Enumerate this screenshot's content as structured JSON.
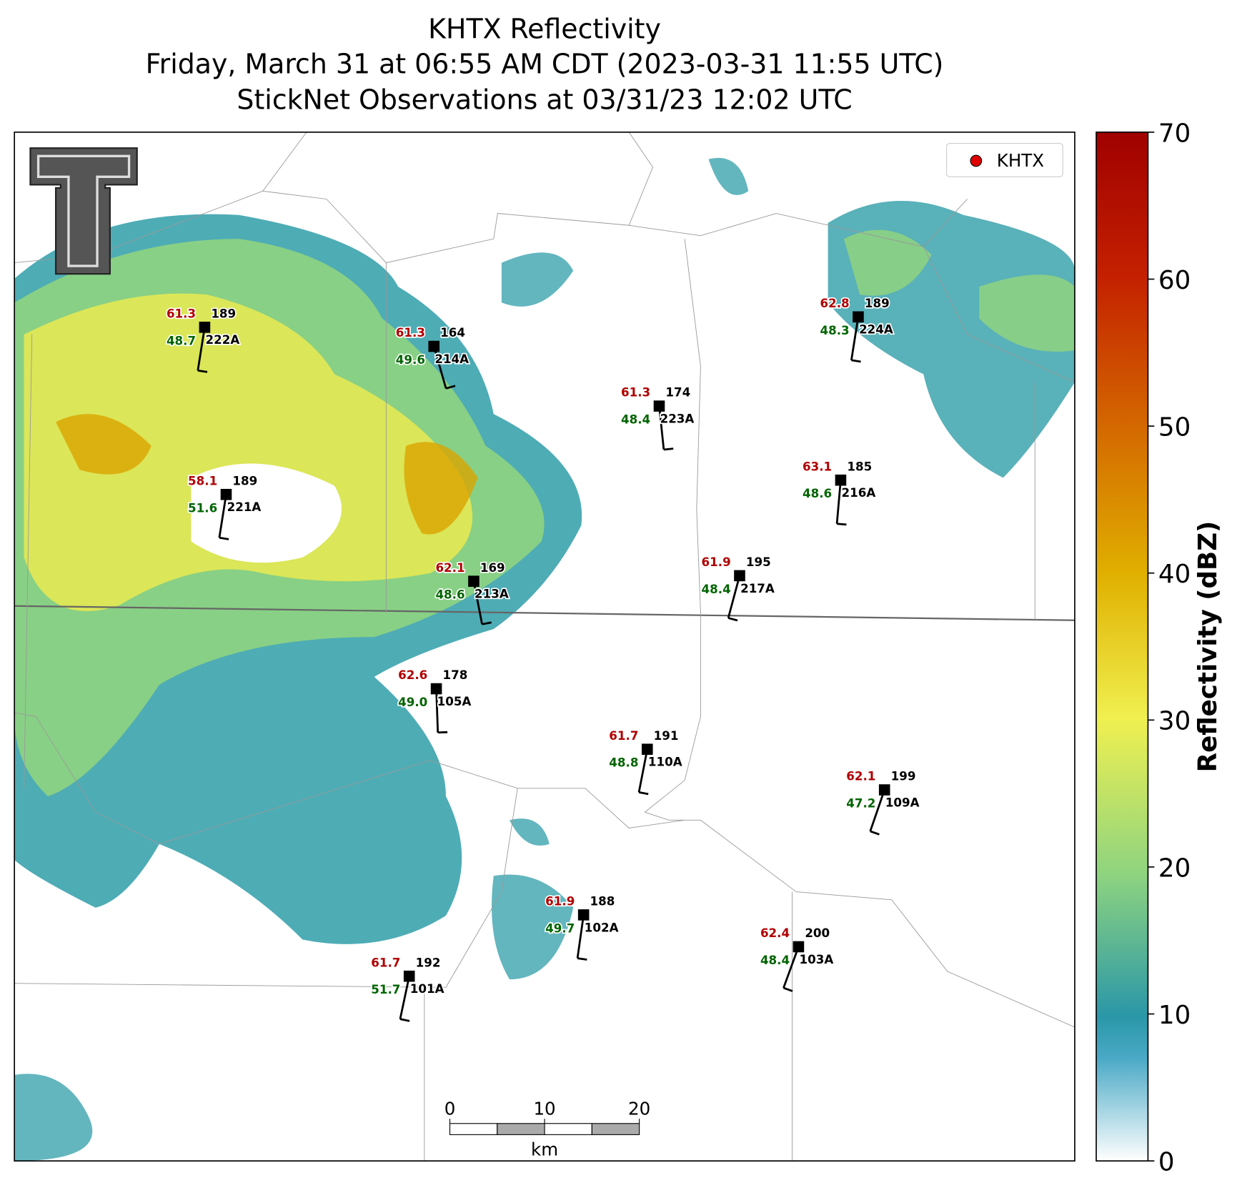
{
  "title": "KHTX Reflectivity",
  "subtitle": [
    "Friday, March 31 at 06:55 AM CDT (2023-03-31 11:55 UTC)",
    "StickNet Observations at 03/31/23 12:02 UTC"
  ],
  "legend": "KHTX",
  "colorbar": {
    "label": "Reflectivity (dBZ)",
    "lim": [
      0,
      70
    ],
    "ticks": [
      0,
      10,
      20,
      30,
      40,
      50,
      60,
      70
    ]
  },
  "scale_bar": {
    "ticks": [
      0,
      10,
      20
    ],
    "unit": "km"
  },
  "stations": [
    {
      "id": "222A",
      "temperature": 61.3,
      "dewpoint": 48.7,
      "wind_direction": 189
    },
    {
      "id": "214A",
      "temperature": 61.3,
      "dewpoint": 49.6,
      "wind_direction": 164
    },
    {
      "id": "223A",
      "temperature": 61.3,
      "dewpoint": 48.4,
      "wind_direction": 174
    },
    {
      "id": "224A",
      "temperature": 62.8,
      "dewpoint": 48.3,
      "wind_direction": 189
    },
    {
      "id": "221A",
      "temperature": 58.1,
      "dewpoint": 51.6,
      "wind_direction": 189
    },
    {
      "id": "216A",
      "temperature": 63.1,
      "dewpoint": 48.6,
      "wind_direction": 185
    },
    {
      "id": "213A",
      "temperature": 62.1,
      "dewpoint": 48.6,
      "wind_direction": 169
    },
    {
      "id": "217A",
      "temperature": 61.9,
      "dewpoint": 48.4,
      "wind_direction": 195
    },
    {
      "id": "105A",
      "temperature": 62.6,
      "dewpoint": {
        "value": 49,
        "label": "49.0"
      },
      "wind_direction": 178
    },
    {
      "id": "110A",
      "temperature": 61.7,
      "dewpoint": 48.8,
      "wind_direction": 191
    },
    {
      "id": "109A",
      "temperature": 62.1,
      "dewpoint": 47.2,
      "wind_direction": 199
    },
    {
      "id": "102A",
      "temperature": 61.9,
      "dewpoint": 49.7,
      "wind_direction": 188
    },
    {
      "id": "103A",
      "temperature": 62.4,
      "dewpoint": 48.4,
      "wind_direction": 200
    },
    {
      "id": "101A",
      "temperature": 61.7,
      "dewpoint": 51.7,
      "wind_direction": 192
    }
  ]
}
